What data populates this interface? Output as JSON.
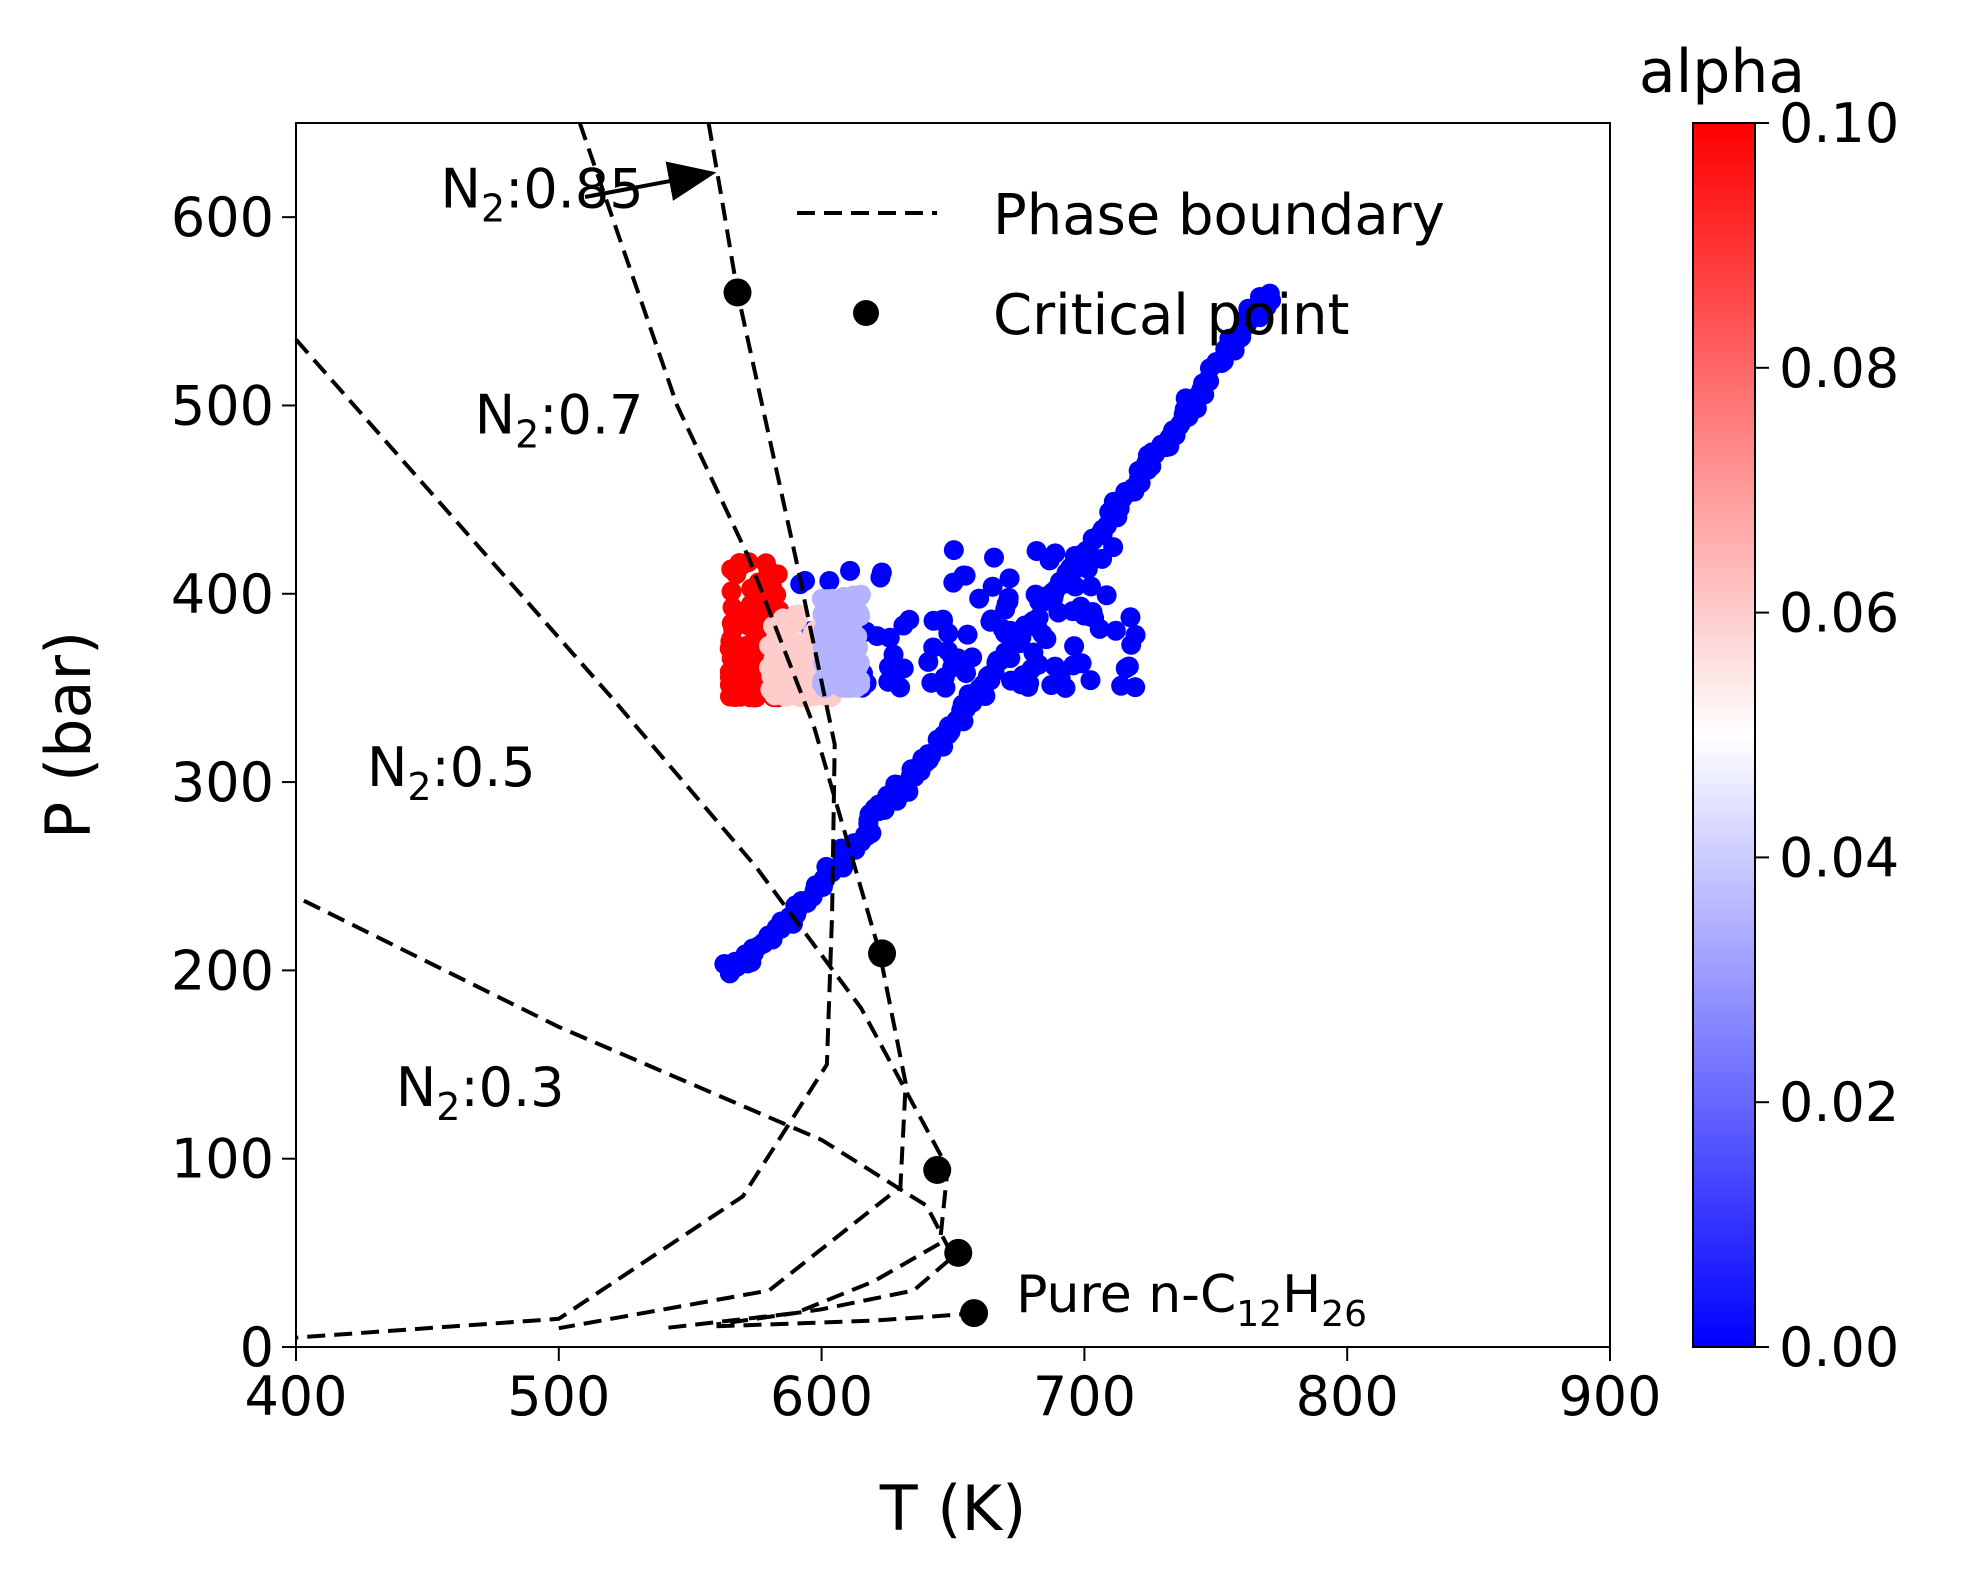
{
  "chart_data": {
    "type": "scatter",
    "xlabel": "T (K)",
    "ylabel": "P (bar)",
    "xlim": [
      400,
      900
    ],
    "ylim": [
      0,
      650
    ],
    "xticks": [
      400,
      500,
      600,
      700,
      800,
      900
    ],
    "yticks": [
      0,
      100,
      200,
      300,
      400,
      500,
      600
    ],
    "grid": false,
    "legend": {
      "placement": "top-right",
      "entries": [
        {
          "label": "Phase boundary",
          "style": "dashed-line",
          "color": "#000000"
        },
        {
          "label": "Critical point",
          "style": "marker",
          "color": "#000000"
        }
      ]
    },
    "colorbar": {
      "title": "alpha",
      "range": [
        0.0,
        0.1
      ],
      "ticks": [
        "0.00",
        "0.02",
        "0.04",
        "0.06",
        "0.08",
        "0.10"
      ],
      "colormap": [
        "#0000ff",
        "#ffffff",
        "#ff0000"
      ]
    },
    "phase_boundaries": [
      {
        "label_main": "N",
        "label_sub": "2",
        "label_rest": ":0.85",
        "label_pos": [
          455,
          605
        ],
        "arrow_from": [
          555,
          615
        ],
        "arrow_to": [
          557,
          623
        ],
        "points": [
          [
            557,
            650
          ],
          [
            562,
            610
          ],
          [
            568,
            560
          ],
          [
            590,
            420
          ],
          [
            605,
            320
          ],
          [
            604,
            230
          ],
          [
            602,
            150
          ],
          [
            570,
            80
          ],
          [
            500,
            15
          ],
          [
            400,
            5
          ]
        ]
      },
      {
        "label_main": "N",
        "label_sub": "2",
        "label_rest": ":0.7",
        "label_pos": [
          468,
          485
        ],
        "points": [
          [
            508,
            650
          ],
          [
            545,
            500
          ],
          [
            572,
            420
          ],
          [
            597,
            330
          ],
          [
            622,
            210
          ],
          [
            632,
            140
          ],
          [
            630,
            85
          ],
          [
            580,
            30
          ],
          [
            500,
            10
          ]
        ]
      },
      {
        "label_main": "N",
        "label_sub": "2",
        "label_rest": ":0.5",
        "label_pos": [
          427,
          298
        ],
        "points": [
          [
            400,
            535
          ],
          [
            460,
            440
          ],
          [
            520,
            345
          ],
          [
            575,
            255
          ],
          [
            615,
            180
          ],
          [
            648,
            95
          ],
          [
            645,
            55
          ],
          [
            620,
            35
          ],
          [
            590,
            18
          ],
          [
            540,
            10
          ]
        ]
      },
      {
        "label_main": "N",
        "label_sub": "2",
        "label_rest": ":0.3",
        "label_pos": [
          438,
          128
        ],
        "points": [
          [
            403,
            237
          ],
          [
            500,
            170
          ],
          [
            600,
            110
          ],
          [
            640,
            75
          ],
          [
            650,
            48
          ],
          [
            635,
            30
          ],
          [
            600,
            20
          ],
          [
            560,
            12
          ]
        ]
      }
    ],
    "pure_curve_points": [
      [
        560,
        11
      ],
      [
        620,
        14
      ],
      [
        660,
        18
      ]
    ],
    "critical_points": [
      {
        "x": 568,
        "y": 560
      },
      {
        "x": 623,
        "y": 209
      },
      {
        "x": 644,
        "y": 94
      },
      {
        "x": 652,
        "y": 50
      },
      {
        "x": 658,
        "y": 18
      }
    ],
    "annotations": [
      {
        "main": "Pure n-C",
        "sub1": "12",
        "mid": "H",
        "sub2": "26",
        "x": 674,
        "y": 25
      }
    ],
    "scatter_series": [
      {
        "x_range": [
          565,
          770
        ],
        "y_range": [
          200,
          560
        ],
        "alpha": 0.0,
        "pattern": "diagonal-band"
      },
      {
        "x_range": [
          590,
          720
        ],
        "y_range": [
          350,
          425
        ],
        "alpha": 0.0,
        "pattern": "cluster"
      },
      {
        "x_range": [
          565,
          585
        ],
        "y_range": [
          345,
          420
        ],
        "alpha": 0.1,
        "pattern": "cluster"
      },
      {
        "x_range": [
          580,
          605
        ],
        "y_range": [
          345,
          390
        ],
        "alpha": 0.06,
        "pattern": "cluster"
      },
      {
        "x_range": [
          600,
          615
        ],
        "y_range": [
          350,
          400
        ],
        "alpha": 0.035,
        "pattern": "cluster"
      }
    ]
  }
}
